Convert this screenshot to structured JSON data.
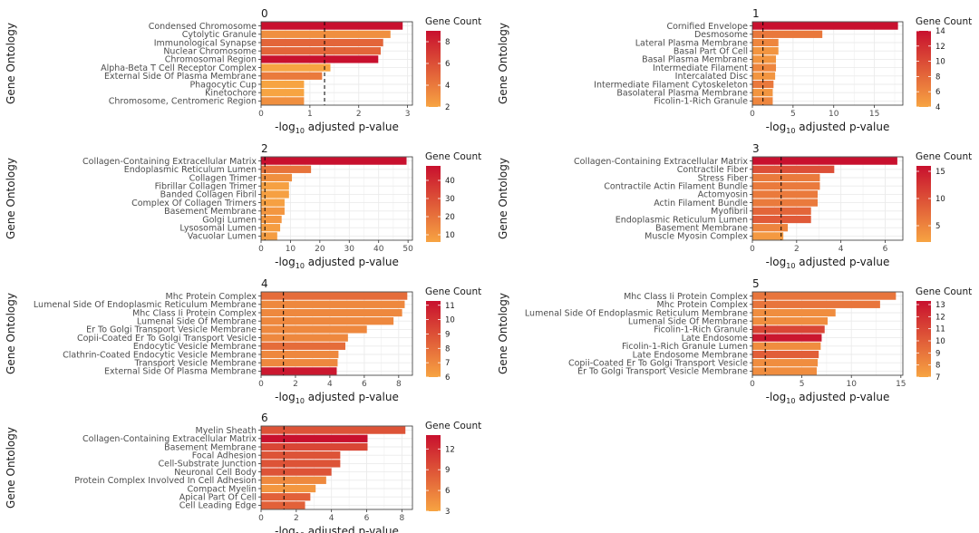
{
  "xlabel_prefix": "-log",
  "xlabel_sub": "10",
  "xlabel_suffix": " adjusted p-value",
  "ylabel": "Gene Ontology",
  "legend_title": "Gene Count",
  "colors": {
    "low": "#f7a442",
    "high": "#c8102e",
    "grid": "#ebebeb",
    "threshold": "#000000"
  },
  "threshold_value": 1.3,
  "chart_data": [
    {
      "type": "bar",
      "title": "0",
      "xlim": [
        0,
        3.1
      ],
      "xticks": [
        0,
        1,
        2,
        3
      ],
      "categories": [
        "Condensed Chromosome",
        "Cytolytic Granule",
        "Immunological Synapse",
        "Nuclear Chromosome",
        "Chromosomal Region",
        "Alpha-Beta T Cell Receptor Complex",
        "External Side Of Plasma Membrane",
        "Phagocytic Cup",
        "Kinetochore",
        "Chromosome, Centromeric Region"
      ],
      "values": [
        2.9,
        2.65,
        2.5,
        2.45,
        2.4,
        1.42,
        1.25,
        0.88,
        0.88,
        0.88
      ],
      "gene_counts": [
        9,
        3,
        5,
        5,
        9,
        2,
        4,
        2,
        2,
        3
      ],
      "legend_range": [
        2,
        9
      ],
      "legend_ticks": [
        2,
        4,
        6,
        8
      ]
    },
    {
      "type": "bar",
      "title": "1",
      "xlim": [
        0,
        18.5
      ],
      "xticks": [
        0,
        5,
        10,
        15
      ],
      "categories": [
        "Cornified Envelope",
        "Desmosome",
        "Lateral Plasma Membrane",
        "Basal Part Of Cell",
        "Basal Plasma Membrane",
        "Intermediate Filament",
        "Intercalated Disc",
        "Intermediate Filament Cytoskeleton",
        "Basolateral Plasma Membrane",
        "Ficolin-1-Rich Granule"
      ],
      "values": [
        17.9,
        8.6,
        3.2,
        3.2,
        2.9,
        2.9,
        2.8,
        2.6,
        2.5,
        2.5
      ],
      "gene_counts": [
        14,
        7,
        6,
        5,
        5,
        6,
        5,
        7,
        5,
        6
      ],
      "legend_range": [
        4,
        14
      ],
      "legend_ticks": [
        4,
        6,
        8,
        10,
        12,
        14
      ]
    },
    {
      "type": "bar",
      "title": "2",
      "xlim": [
        0,
        51.5
      ],
      "xticks": [
        0,
        10,
        20,
        30,
        40,
        50
      ],
      "categories": [
        "Collagen-Containing Extracellular Matrix",
        "Endoplasmic Reticulum Lumen",
        "Collagen Trimer",
        "Fibrillar Collagen Trimer",
        "Banded Collagen Fibril",
        "Complex Of Collagen Trimers",
        "Basement Membrane",
        "Golgi Lumen",
        "Lysosomal Lumen",
        "Vacuolar Lumen"
      ],
      "values": [
        49.5,
        17.0,
        10.5,
        9.5,
        9.5,
        8.0,
        8.0,
        7.0,
        6.5,
        5.5
      ],
      "gene_counts": [
        48,
        20,
        12,
        7,
        7,
        7,
        10,
        10,
        8,
        8
      ],
      "legend_range": [
        6,
        48
      ],
      "legend_ticks": [
        10,
        20,
        30,
        40
      ]
    },
    {
      "type": "bar",
      "title": "3",
      "xlim": [
        0,
        6.8
      ],
      "xticks": [
        0,
        2,
        4,
        6
      ],
      "categories": [
        "Collagen-Containing Extracellular Matrix",
        "Contractile Fiber",
        "Stress Fiber",
        "Contractile Actin Filament Bundle",
        "Actomyosin",
        "Actin Filament Bundle",
        "Myofibril",
        "Endoplasmic Reticulum Lumen",
        "Basement Membrane",
        "Muscle Myosin Complex"
      ],
      "values": [
        6.55,
        3.7,
        3.05,
        3.05,
        2.95,
        2.95,
        2.65,
        2.65,
        1.6,
        1.4
      ],
      "gene_counts": [
        16,
        10,
        6,
        6,
        6,
        6,
        8,
        9,
        5,
        3
      ],
      "legend_range": [
        2,
        16
      ],
      "legend_ticks": [
        5,
        10,
        15
      ]
    },
    {
      "type": "bar",
      "title": "4",
      "xlim": [
        0,
        8.8
      ],
      "xticks": [
        0,
        2,
        4,
        6,
        8
      ],
      "categories": [
        "Mhc Protein Complex",
        "Lumenal Side Of Endoplasmic Reticulum Membrane",
        "Mhc Class Ii Protein Complex",
        "Lumenal Side Of Membrane",
        "Er To Golgi Transport Vesicle Membrane",
        "Copii-Coated Er To Golgi Transport Vesicle",
        "Endocytic Vesicle Membrane",
        "Clathrin-Coated Endocytic Vesicle Membrane",
        "Transport Vesicle Membrane",
        "External Side Of Plasma Membrane"
      ],
      "values": [
        8.5,
        8.35,
        8.2,
        7.7,
        6.15,
        5.05,
        4.9,
        4.5,
        4.45,
        4.4
      ],
      "gene_counts": [
        8,
        7,
        7,
        7,
        7,
        7,
        8,
        7,
        7,
        11
      ],
      "legend_range": [
        6,
        11.3
      ],
      "legend_ticks": [
        6,
        7,
        8,
        9,
        10,
        11
      ]
    },
    {
      "type": "bar",
      "title": "5",
      "xlim": [
        0,
        15.2
      ],
      "xticks": [
        0,
        5,
        10,
        15
      ],
      "categories": [
        "Mhc Class Ii Protein Complex",
        "Mhc Protein Complex",
        "Lumenal Side Of Endoplasmic Reticulum Membrane",
        "Lumenal Side Of Membrane",
        "Ficolin-1-Rich Granule",
        "Late Endosome",
        "Ficolin-1-Rich Granule Lumen",
        "Late Endosome Membrane",
        "Copii-Coated Er To Golgi Transport Vesicle",
        "Er To Golgi Transport Vesicle Membrane"
      ],
      "values": [
        14.5,
        12.9,
        8.4,
        7.6,
        7.3,
        7.0,
        6.9,
        6.7,
        6.6,
        6.5
      ],
      "gene_counts": [
        9,
        9,
        8,
        8,
        11,
        13,
        8,
        10,
        8,
        8
      ],
      "legend_range": [
        7,
        13.3
      ],
      "legend_ticks": [
        7,
        8,
        9,
        10,
        11,
        12,
        13
      ]
    },
    {
      "type": "bar",
      "title": "6",
      "xlim": [
        0,
        8.6
      ],
      "xticks": [
        0,
        2,
        4,
        6,
        8
      ],
      "categories": [
        "Myelin Sheath",
        "Collagen-Containing Extracellular Matrix",
        "Basement Membrane",
        "Focal Adhesion",
        "Cell-Substrate Junction",
        "Neuronal Cell Body",
        "Protein Complex Involved In Cell Adhesion",
        "Compact Myelin",
        "Apical Part Of Cell",
        "Cell Leading Edge"
      ],
      "values": [
        8.2,
        6.05,
        6.05,
        4.5,
        4.5,
        4.0,
        3.7,
        3.1,
        2.8,
        2.5
      ],
      "gene_counts": [
        9,
        14,
        10,
        9,
        9,
        9,
        5,
        4,
        8,
        8
      ],
      "legend_range": [
        3,
        14
      ],
      "legend_ticks": [
        3,
        6,
        9,
        12
      ]
    }
  ]
}
